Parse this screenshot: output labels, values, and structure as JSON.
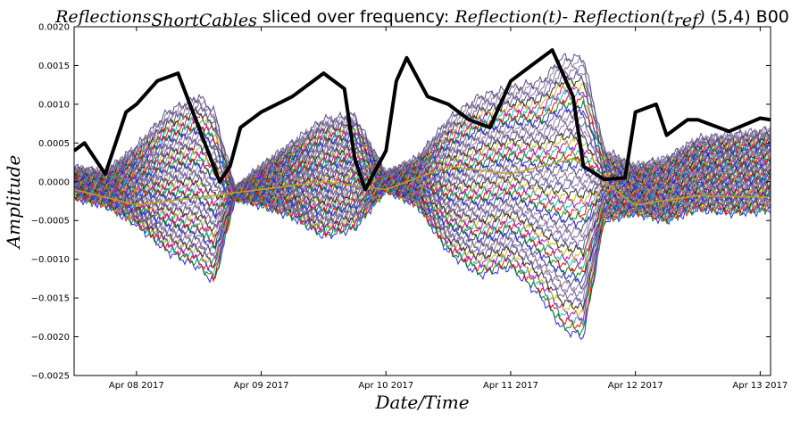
{
  "chart_data": {
    "type": "line",
    "title": {
      "part1_main": "Reflections",
      "part1_sub": "ShortCables",
      "part2": " sliced over frequency: ",
      "part3": "Reflection(t)",
      "part4": "- ",
      "part5_main": "Reflection(t",
      "part5_sub": "ref",
      "part5_end": ")",
      "part6": " (5,4) B00"
    },
    "xlabel": "Date/Time",
    "ylabel": "Amplitude",
    "xlim": [
      "2017-04-07T12:00",
      "2017-04-13T02:00"
    ],
    "ylim": [
      -0.0025,
      0.002
    ],
    "x_ticks": [
      "2017-04-08",
      "2017-04-09",
      "2017-04-10",
      "2017-04-11",
      "2017-04-12",
      "2017-04-13"
    ],
    "x_tick_labels": [
      "Apr 08 2017",
      "Apr 09 2017",
      "Apr 10 2017",
      "Apr 11 2017",
      "Apr 12 2017",
      "Apr 13 2017"
    ],
    "y_ticks": [
      -0.0025,
      -0.002,
      -0.0015,
      -0.001,
      -0.0005,
      0.0,
      0.0005,
      0.001,
      0.0015,
      0.002
    ],
    "y_tick_labels": [
      "−0.0025",
      "−0.0020",
      "−0.0015",
      "−0.0010",
      "−0.0005",
      "0.0000",
      "0.0005",
      "0.0010",
      "0.0015",
      "0.0020"
    ],
    "grid": false,
    "band_envelope": {
      "x": [
        "2017-04-07T12:00",
        "2017-04-07T18:00",
        "2017-04-08T00:00",
        "2017-04-08T06:00",
        "2017-04-08T12:00",
        "2017-04-08T15:00",
        "2017-04-08T19:00",
        "2017-04-09T00:00",
        "2017-04-09T06:00",
        "2017-04-09T12:00",
        "2017-04-09T18:00",
        "2017-04-10T00:00",
        "2017-04-10T06:00",
        "2017-04-10T12:00",
        "2017-04-10T18:00",
        "2017-04-11T00:00",
        "2017-04-11T06:00",
        "2017-04-11T10:00",
        "2017-04-11T14:00",
        "2017-04-11T18:00",
        "2017-04-12T00:00",
        "2017-04-12T06:00",
        "2017-04-12T12:00",
        "2017-04-12T18:00",
        "2017-04-13T00:00",
        "2017-04-13T02:00"
      ],
      "upper": [
        0.00018,
        0.00012,
        0.00045,
        0.0009,
        0.0011,
        0.0009,
        -0.0001,
        0.0002,
        0.0005,
        0.0008,
        0.00085,
        0.0001,
        0.0003,
        0.0008,
        0.0011,
        0.0012,
        0.0013,
        0.0016,
        0.0016,
        0.0004,
        0.0002,
        0.0003,
        0.00055,
        0.0006,
        0.00065,
        0.00068
      ],
      "lower": [
        -0.0002,
        -0.0003,
        -0.00055,
        -0.0009,
        -0.0011,
        -0.0013,
        -0.0002,
        -0.0003,
        -0.00045,
        -0.0007,
        -0.0006,
        -0.0001,
        -0.0003,
        -0.0009,
        -0.0012,
        -0.0011,
        -0.0015,
        -0.0019,
        -0.002,
        -0.0005,
        -0.0004,
        -0.0005,
        -0.00035,
        -0.0004,
        -0.00038,
        -0.00035
      ]
    },
    "band_line_count": 60,
    "band_colors": [
      "#1f1fff",
      "#008000",
      "#ff0000",
      "#00bfbf",
      "#bf00bf",
      "#bfbf00",
      "#222222",
      "#555599",
      "#8b6aa0",
      "#6b6b9a",
      "#9a7a90",
      "#4a4a80"
    ],
    "series": [
      {
        "color": "#000000",
        "x": [
          "2017-04-07T12:00",
          "2017-04-07T14:00",
          "2017-04-07T18:00",
          "2017-04-07T22:00",
          "2017-04-08T00:00",
          "2017-04-08T04:00",
          "2017-04-08T08:00",
          "2017-04-08T12:00",
          "2017-04-08T16:00",
          "2017-04-08T18:00",
          "2017-04-08T20:00",
          "2017-04-08T22:00",
          "2017-04-09T00:00",
          "2017-04-09T06:00",
          "2017-04-09T12:00",
          "2017-04-09T16:00",
          "2017-04-09T18:00",
          "2017-04-09T20:00",
          "2017-04-10T00:00",
          "2017-04-10T02:00",
          "2017-04-10T04:00",
          "2017-04-10T08:00",
          "2017-04-10T12:00",
          "2017-04-10T16:00",
          "2017-04-10T20:00",
          "2017-04-11T00:00",
          "2017-04-11T04:00",
          "2017-04-11T08:00",
          "2017-04-11T12:00",
          "2017-04-11T14:00",
          "2017-04-11T18:00",
          "2017-04-11T22:00",
          "2017-04-12T00:00",
          "2017-04-12T04:00",
          "2017-04-12T06:00",
          "2017-04-12T10:00",
          "2017-04-12T12:00",
          "2017-04-12T18:00",
          "2017-04-13T00:00",
          "2017-04-13T02:00"
        ],
        "y": [
          0.0004,
          0.0005,
          0.0001,
          0.0009,
          0.001,
          0.0013,
          0.0014,
          0.0007,
          0.0,
          0.0002,
          0.0007,
          0.0008,
          0.0009,
          0.0011,
          0.0014,
          0.0012,
          0.0003,
          -0.0001,
          0.0004,
          0.0013,
          0.0016,
          0.0011,
          0.001,
          0.0008,
          0.0007,
          0.0013,
          0.0015,
          0.0017,
          0.0011,
          0.0002,
          3e-05,
          5e-05,
          0.0009,
          0.001,
          0.0006,
          0.0008,
          0.0008,
          0.00065,
          0.00082,
          0.0008
        ]
      },
      {
        "color": "#c8a020",
        "x": [
          "2017-04-07T12:00",
          "2017-04-08T00:00",
          "2017-04-08T12:00",
          "2017-04-09T00:00",
          "2017-04-09T12:00",
          "2017-04-10T00:00",
          "2017-04-10T12:00",
          "2017-04-11T00:00",
          "2017-04-11T12:00",
          "2017-04-12T00:00",
          "2017-04-12T12:00",
          "2017-04-13T02:00"
        ],
        "y": [
          -0.0001,
          -0.0003,
          -0.0002,
          -0.0001,
          0.0,
          -0.0001,
          0.0002,
          0.0001,
          0.0003,
          -0.0003,
          -0.00018,
          -0.0002
        ]
      }
    ]
  }
}
